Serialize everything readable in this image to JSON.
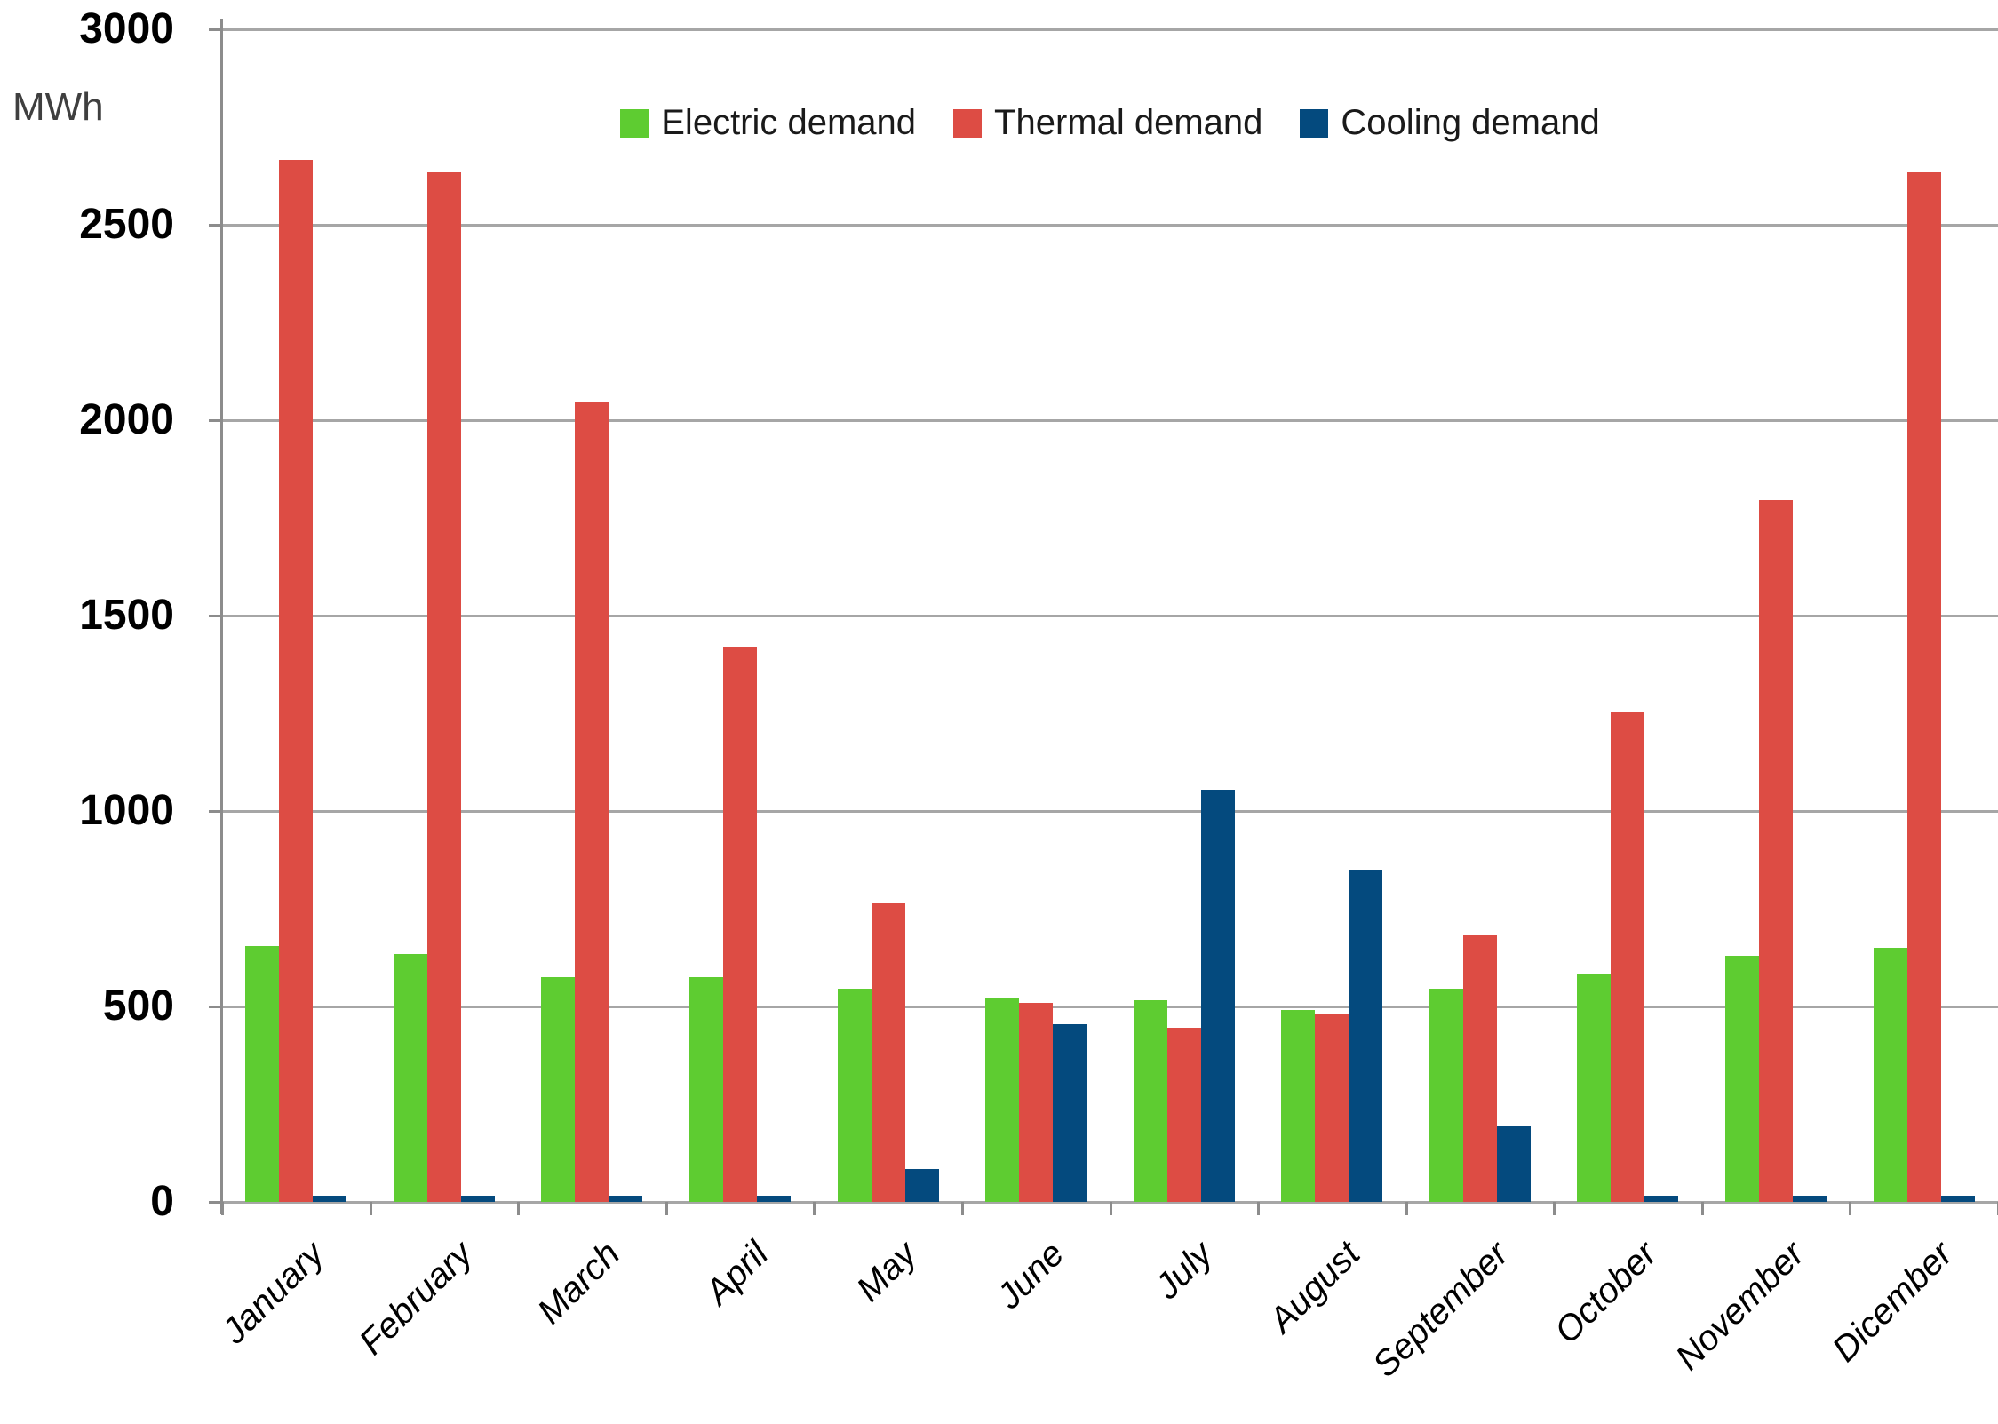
{
  "chart_data": {
    "type": "bar",
    "title": "",
    "ylabel": "MWh",
    "xlabel": "",
    "categories": [
      "January",
      "February",
      "March",
      "April",
      "May",
      "June",
      "July",
      "August",
      "September",
      "October",
      "November",
      "Dicember"
    ],
    "series": [
      {
        "name": "Electric demand",
        "color": "#5ecc31",
        "values": [
          655,
          635,
          575,
          575,
          545,
          520,
          515,
          490,
          545,
          585,
          630,
          650
        ]
      },
      {
        "name": "Thermal demand",
        "color": "#dd4c44",
        "values": [
          2665,
          2635,
          2045,
          1420,
          765,
          510,
          445,
          480,
          685,
          1255,
          1795,
          2635
        ]
      },
      {
        "name": "Cooling demand",
        "color": "#044a7e",
        "values": [
          15,
          15,
          15,
          15,
          85,
          455,
          1055,
          850,
          195,
          15,
          15,
          15
        ]
      }
    ],
    "ylim": [
      0,
      3000
    ],
    "ytick_step": 500,
    "ytick_labels": [
      "3000",
      "2500",
      "2000",
      "1500",
      "1000",
      "500",
      "0"
    ],
    "grid": true,
    "legend_position": "top-center",
    "grid_color": "#a6a6a6",
    "axis_color": "#8c8c8c",
    "text_color": "#000000",
    "unit_label_color": "#3f3f3f"
  }
}
